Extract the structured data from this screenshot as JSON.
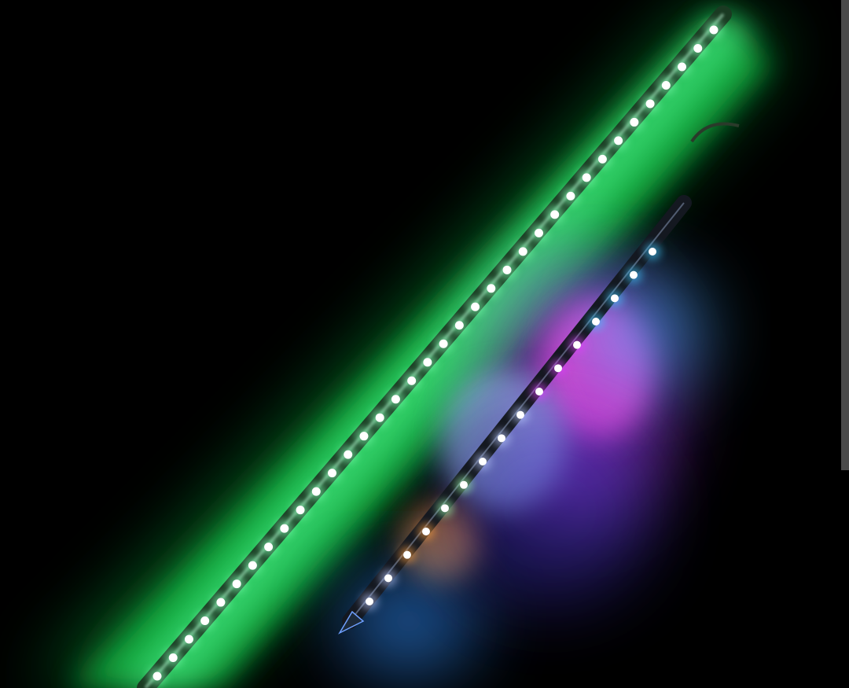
{
  "image": {
    "subject": "led-tubes",
    "colors": {
      "background": "#000000",
      "green_glow": "#19c84a",
      "green_core": "#7dffb0",
      "magenta": "#e040ff",
      "cyan": "#40c8ff",
      "orange": "#ffa040",
      "blue_tube_led": "#b8c8ff"
    }
  }
}
